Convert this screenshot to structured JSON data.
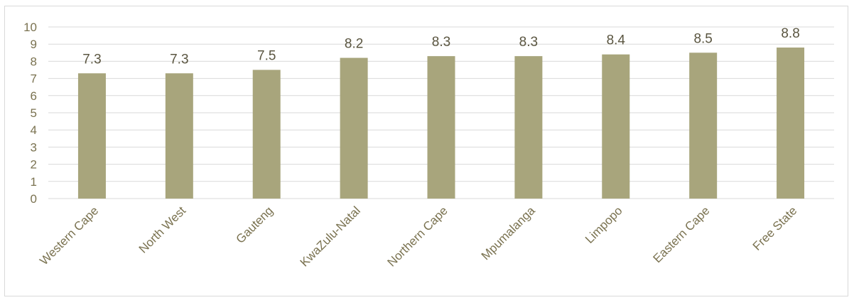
{
  "chart_data": {
    "type": "bar",
    "title": "",
    "xlabel": "",
    "ylabel": "",
    "categories": [
      "Western Cape",
      "North West",
      "Gauteng",
      "KwaZulu-Natal",
      "Northern Cape",
      "Mpumalanga",
      "Limpopo",
      "Eastern Cape",
      "Free State"
    ],
    "values": [
      7.3,
      7.3,
      7.5,
      8.2,
      8.3,
      8.3,
      8.4,
      8.5,
      8.8
    ],
    "data_labels": [
      "7.3",
      "7.3",
      "7.5",
      "8.2",
      "8.3",
      "8.3",
      "8.4",
      "8.5",
      "8.8"
    ],
    "ylim": [
      0,
      10
    ],
    "yticks": [
      "0",
      "1",
      "2",
      "3",
      "4",
      "5",
      "6",
      "7",
      "8",
      "9",
      "10"
    ],
    "grid": true,
    "legend": "none",
    "colors": {
      "bar": "#a8a57c",
      "grid": "#d9d9d9",
      "axis_text": "#7a7250",
      "label_text": "#5a5540"
    }
  }
}
